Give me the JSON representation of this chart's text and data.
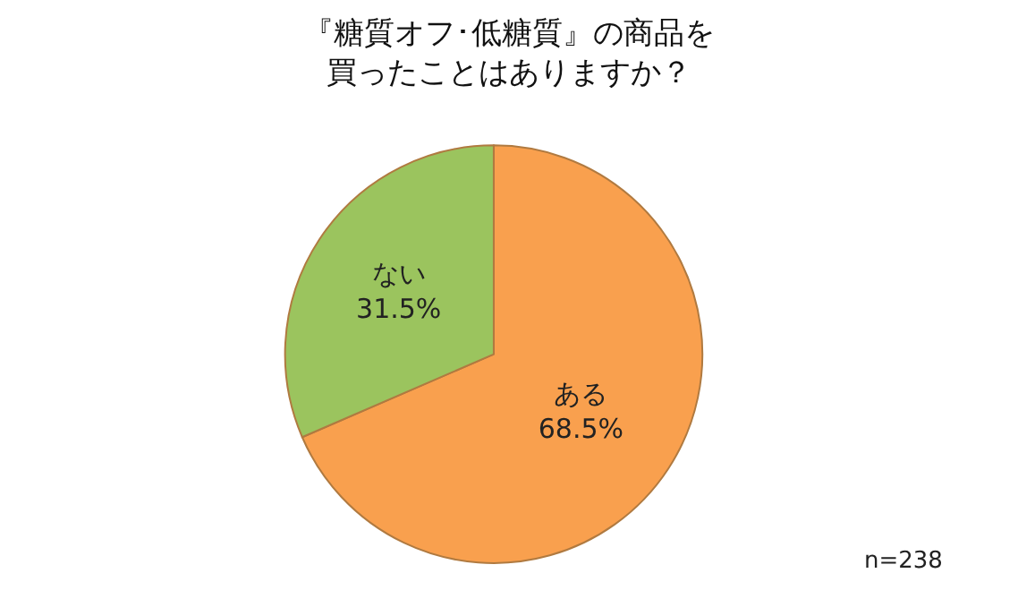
{
  "chart_data": {
    "type": "pie",
    "title": "『糖質オフ･低糖質』の商品を買ったことはありますか？",
    "categories": [
      "ある",
      "ない"
    ],
    "values": [
      68.5,
      31.5
    ],
    "value_labels": [
      "68.5%",
      "31.5%"
    ],
    "colors": [
      "#f9a04e",
      "#9bc45e"
    ],
    "legend": false,
    "annotations": [
      "n=238"
    ]
  }
}
